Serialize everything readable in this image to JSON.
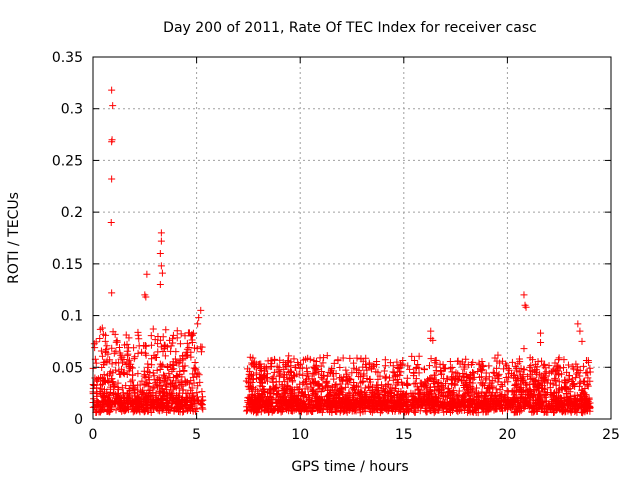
{
  "chart_data": {
    "type": "scatter",
    "title": "Day 200 of 2011, Rate Of TEC Index for receiver casc",
    "xlabel": "GPS time / hours",
    "ylabel": "ROTI / TECUs",
    "xlim": [
      0,
      25
    ],
    "ylim": [
      0,
      0.35
    ],
    "xticks": [
      0,
      5,
      10,
      15,
      20,
      25
    ],
    "yticks": [
      0,
      0.05,
      0.1,
      0.15,
      0.2,
      0.25,
      0.3,
      0.35
    ],
    "xtick_labels": [
      "0",
      "5",
      "10",
      "15",
      "20",
      "25"
    ],
    "ytick_labels": [
      "0",
      "0.05",
      "0.1",
      "0.15",
      "0.2",
      "0.25",
      "0.3",
      "0.35"
    ],
    "grid": true,
    "marker": "+",
    "color": "#ff0000",
    "highlight_points": [
      {
        "x": 0.9,
        "y": 0.318
      },
      {
        "x": 0.95,
        "y": 0.303
      },
      {
        "x": 0.9,
        "y": 0.268
      },
      {
        "x": 0.92,
        "y": 0.27
      },
      {
        "x": 0.9,
        "y": 0.232
      },
      {
        "x": 0.88,
        "y": 0.19
      },
      {
        "x": 0.9,
        "y": 0.122
      },
      {
        "x": 0.45,
        "y": 0.088
      },
      {
        "x": 0.5,
        "y": 0.082
      },
      {
        "x": 3.3,
        "y": 0.18
      },
      {
        "x": 3.3,
        "y": 0.172
      },
      {
        "x": 3.25,
        "y": 0.16
      },
      {
        "x": 3.3,
        "y": 0.148
      },
      {
        "x": 3.35,
        "y": 0.141
      },
      {
        "x": 3.25,
        "y": 0.13
      },
      {
        "x": 2.6,
        "y": 0.14
      },
      {
        "x": 2.5,
        "y": 0.12
      },
      {
        "x": 2.55,
        "y": 0.118
      },
      {
        "x": 5.2,
        "y": 0.105
      },
      {
        "x": 5.1,
        "y": 0.098
      },
      {
        "x": 5.05,
        "y": 0.092
      },
      {
        "x": 7.8,
        "y": 0.055
      },
      {
        "x": 7.9,
        "y": 0.05
      },
      {
        "x": 16.3,
        "y": 0.085
      },
      {
        "x": 16.3,
        "y": 0.078
      },
      {
        "x": 16.4,
        "y": 0.076
      },
      {
        "x": 20.8,
        "y": 0.12
      },
      {
        "x": 20.85,
        "y": 0.11
      },
      {
        "x": 20.9,
        "y": 0.108
      },
      {
        "x": 21.6,
        "y": 0.083
      },
      {
        "x": 21.6,
        "y": 0.074
      },
      {
        "x": 23.4,
        "y": 0.092
      },
      {
        "x": 23.5,
        "y": 0.085
      },
      {
        "x": 23.6,
        "y": 0.075
      },
      {
        "x": 20.8,
        "y": 0.068
      }
    ],
    "segments": [
      {
        "start": 0.0,
        "end": 5.3,
        "base": 0.012,
        "peak": 0.07
      },
      {
        "start": 7.4,
        "end": 24.0,
        "base": 0.012,
        "peak": 0.045
      }
    ],
    "data_gap": [
      5.3,
      7.4
    ]
  }
}
